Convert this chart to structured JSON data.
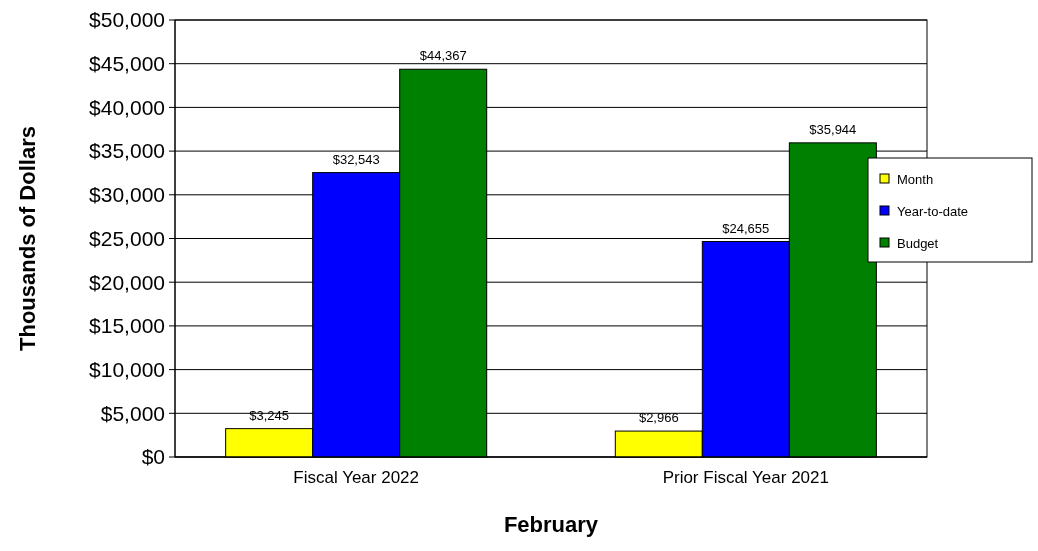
{
  "chart_data": {
    "type": "bar",
    "xlabel": "February",
    "ylabel": "Thousands of Dollars",
    "categories": [
      "Fiscal Year 2022",
      "Prior Fiscal Year 2021"
    ],
    "series": [
      {
        "name": "Month",
        "color": "#ffff00",
        "values": [
          3245,
          2966
        ],
        "value_labels": [
          "$3,245",
          "$2,966"
        ]
      },
      {
        "name": "Year-to-date",
        "color": "#0000ff",
        "values": [
          32543,
          24655
        ],
        "value_labels": [
          "$32,543",
          "$24,655"
        ]
      },
      {
        "name": "Budget",
        "color": "#008000",
        "values": [
          44367,
          35944
        ],
        "value_labels": [
          "$44,367",
          "$35,944"
        ]
      }
    ],
    "ylim": [
      0,
      50000
    ],
    "yticks": [
      {
        "value": 0,
        "label": "$0"
      },
      {
        "value": 5000,
        "label": "$5,000"
      },
      {
        "value": 10000,
        "label": "$10,000"
      },
      {
        "value": 15000,
        "label": "$15,000"
      },
      {
        "value": 20000,
        "label": "$20,000"
      },
      {
        "value": 25000,
        "label": "$25,000"
      },
      {
        "value": 30000,
        "label": "$30,000"
      },
      {
        "value": 35000,
        "label": "$35,000"
      },
      {
        "value": 40000,
        "label": "$40,000"
      },
      {
        "value": 45000,
        "label": "$45,000"
      },
      {
        "value": 50000,
        "label": "$50,000"
      }
    ],
    "grid": "y",
    "legend": "right"
  }
}
